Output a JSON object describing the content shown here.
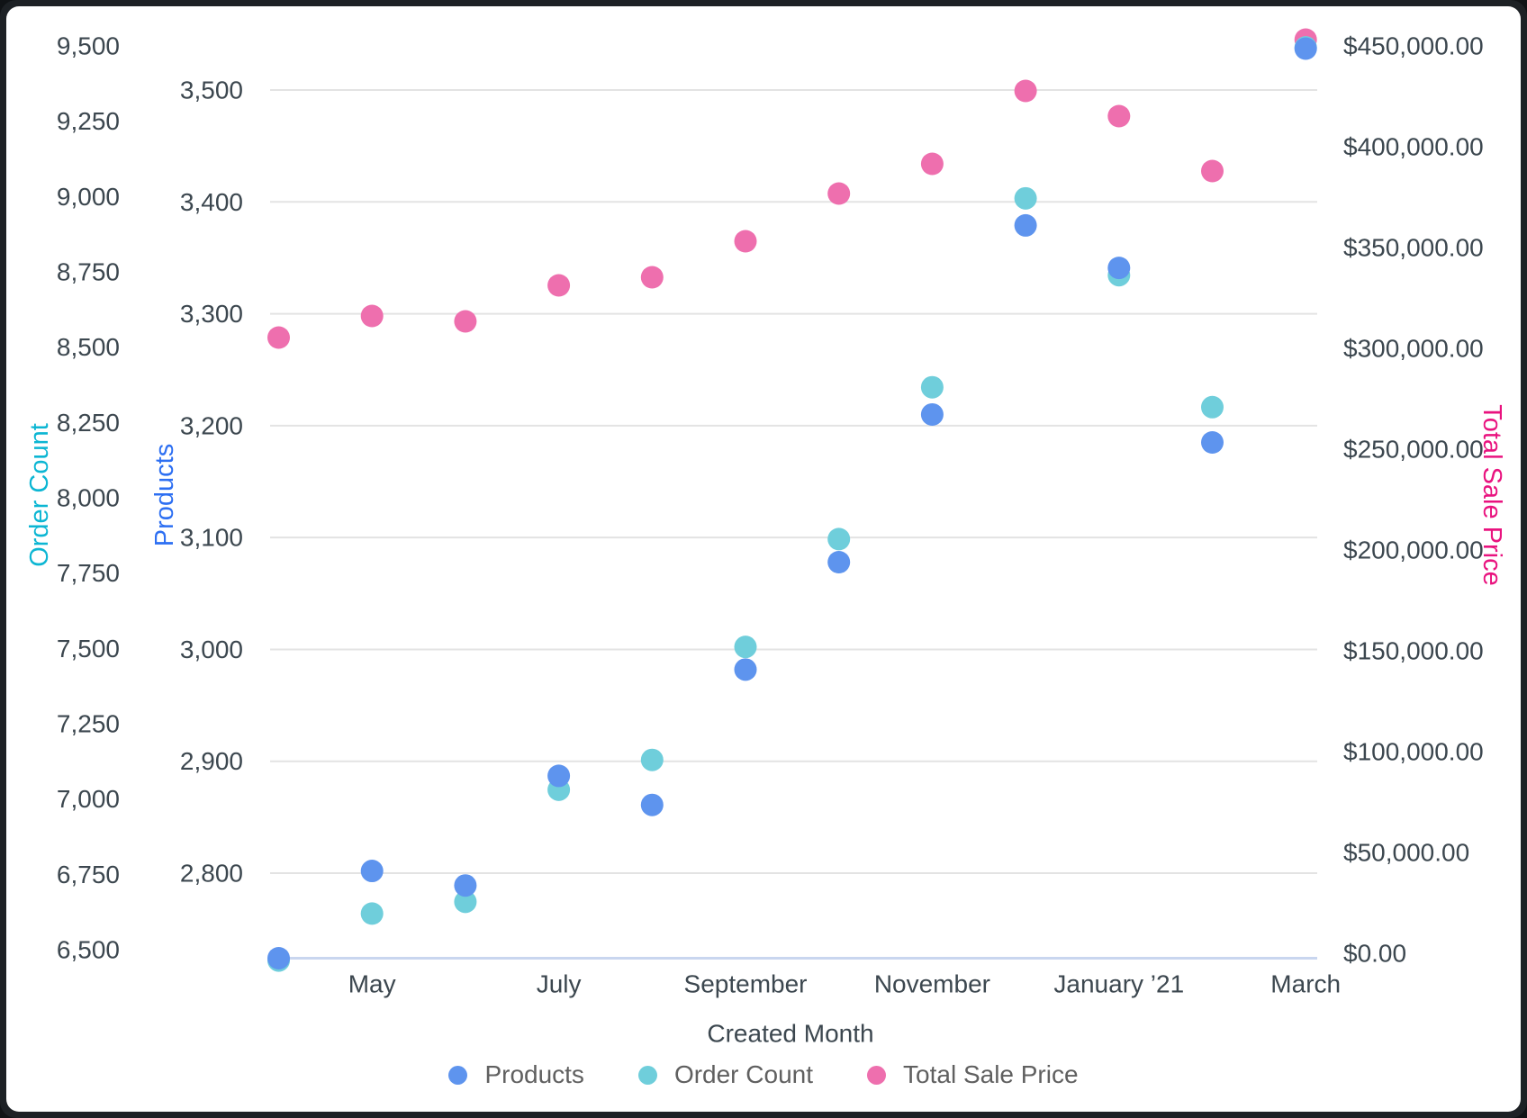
{
  "chart_data": {
    "type": "scatter",
    "n_points": 12,
    "x_axis": {
      "title": "Created Month",
      "tick_labels": [
        "May",
        "July",
        "September",
        "November",
        "January ’21",
        "March"
      ],
      "tick_indices": [
        1,
        3,
        5,
        7,
        9,
        11
      ]
    },
    "axes": {
      "order_count": {
        "title": "Order Count",
        "color": "#0cb6d3",
        "range": [
          6500,
          9500
        ],
        "tick_step": 250,
        "tick_labels": [
          "9,500",
          "9,250",
          "9,000",
          "8,750",
          "8,500",
          "8,250",
          "8,000",
          "7,750",
          "7,500",
          "7,250",
          "7,000",
          "6,750",
          "6,500"
        ]
      },
      "products": {
        "title": "Products",
        "color": "#2d6ff2",
        "range": [
          2800,
          3500
        ],
        "tick_step": 100,
        "tick_labels": [
          "3,500",
          "3,400",
          "3,300",
          "3,200",
          "3,100",
          "3,000",
          "2,900",
          "2,800"
        ]
      },
      "total_sale_price": {
        "title": "Total Sale Price",
        "color": "#e9137f",
        "range": [
          0,
          450000
        ],
        "tick_step": 50000,
        "tick_labels": [
          "$450,000.00",
          "$400,000.00",
          "$350,000.00",
          "$300,000.00",
          "$250,000.00",
          "$200,000.00",
          "$150,000.00",
          "$100,000.00",
          "$50,000.00",
          "$0.00"
        ]
      }
    },
    "series": [
      {
        "name": "Products",
        "axis": "products",
        "color": "#5e94ee",
        "values": [
          2724,
          2802,
          2789,
          2887,
          2861,
          2982,
          3078,
          3210,
          3379,
          3341,
          3185,
          3537
        ]
      },
      {
        "name": "Order Count",
        "axis": "order_count",
        "color": "#6fcedb",
        "values": [
          6464,
          6620,
          6659,
          7031,
          7130,
          7505,
          7863,
          8367,
          8994,
          8739,
          8301,
          9495
        ]
      },
      {
        "name": "Total Sale Price",
        "axis": "total_sale_price",
        "color": "#ee6fae",
        "values": [
          305357,
          316071,
          313393,
          331250,
          335268,
          353125,
          376786,
          391518,
          427679,
          415179,
          387946,
          453125
        ]
      }
    ],
    "legend": {
      "position": "bottom",
      "items": [
        "Products",
        "Order Count",
        "Total Sale Price"
      ]
    },
    "grid": "horizontal (at Products ticks)"
  },
  "colors": {
    "tick_text": "#3c474f",
    "legend_text": "#606060",
    "gridline": "#e3e3e3",
    "axis_line": "#c9d6ef",
    "frame": "#1d2125",
    "background": "#ffffff"
  }
}
